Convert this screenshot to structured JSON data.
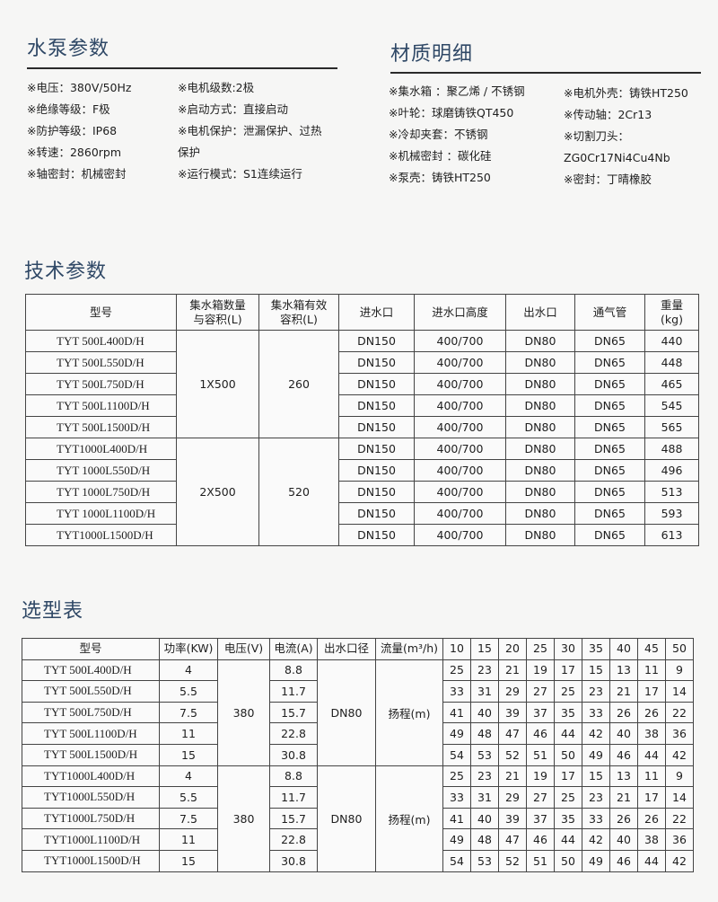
{
  "pump_params": {
    "title": "水泵参数",
    "col1": [
      "※电压：380V/50Hz",
      "※绝缘等级：F极",
      "※防护等级：IP68",
      "※转速：2860rpm",
      "※轴密封：机械密封"
    ],
    "col2": [
      "※电机级数:2极",
      "※启动方式：直接启动",
      "※电机保护：泄漏保护、过热",
      "保护",
      "※运行模式：S1连续运行"
    ]
  },
  "materials": {
    "title": "材质明细",
    "col1": [
      "※集水箱 ：聚乙烯 / 不锈钢",
      "※叶轮：球磨铸铁QT450",
      "※冷却夹套：不锈钢",
      "※机械密封 ：碳化硅",
      "※泵壳：铸铁HT250"
    ],
    "col2": [
      "※电机外壳：铸铁HT250",
      "※传动轴：2Cr13",
      "※切割刀头：",
      "ZG0Cr17Ni4Cu4Nb",
      "※密封：丁晴橡胶"
    ]
  },
  "tech": {
    "title": "技术参数",
    "headers": [
      "型号",
      "集水箱数量与容积(L)",
      "集水箱有效容积(L)",
      "进水口",
      "进水口高度",
      "出水口",
      "通气管",
      "重量(kg)"
    ],
    "groups": [
      {
        "tank": "1X500",
        "effective": "260",
        "rows": [
          [
            "TYT 500L400D/H",
            "DN150",
            "400/700",
            "DN80",
            "DN65",
            "440"
          ],
          [
            "TYT 500L550D/H",
            "DN150",
            "400/700",
            "DN80",
            "DN65",
            "448"
          ],
          [
            "TYT 500L750D/H",
            "DN150",
            "400/700",
            "DN80",
            "DN65",
            "465"
          ],
          [
            "TYT 500L1100D/H",
            "DN150",
            "400/700",
            "DN80",
            "DN65",
            "545"
          ],
          [
            "TYT 500L1500D/H",
            "DN150",
            "400/700",
            "DN80",
            "DN65",
            "565"
          ]
        ]
      },
      {
        "tank": "2X500",
        "effective": "520",
        "rows": [
          [
            "TYT1000L400D/H",
            "DN150",
            "400/700",
            "DN80",
            "DN65",
            "488"
          ],
          [
            "TYT 1000L550D/H",
            "DN150",
            "400/700",
            "DN80",
            "DN65",
            "496"
          ],
          [
            "TYT 1000L750D/H",
            "DN150",
            "400/700",
            "DN80",
            "DN65",
            "513"
          ],
          [
            "TYT 1000L1100D/H",
            "DN150",
            "400/700",
            "DN80",
            "DN65",
            "593"
          ],
          [
            "TYT1000L1500D/H",
            "DN150",
            "400/700",
            "DN80",
            "DN65",
            "613"
          ]
        ]
      }
    ]
  },
  "selection": {
    "title": "选型表",
    "headers": [
      "型号",
      "功率(KW)",
      "电压(V)",
      "电流(A)",
      "出水口径",
      "流量(m³/h)"
    ],
    "flows": [
      "10",
      "15",
      "20",
      "25",
      "30",
      "35",
      "40",
      "45",
      "50"
    ],
    "groups": [
      {
        "voltage": "380",
        "outlet": "DN80",
        "head_label": "扬程(m)",
        "rows": [
          {
            "model": "TYT 500L400D/H",
            "power": "4",
            "current": "8.8",
            "heads": [
              "25",
              "23",
              "21",
              "19",
              "17",
              "15",
              "13",
              "11",
              "9"
            ]
          },
          {
            "model": "TYT 500L550D/H",
            "power": "5.5",
            "current": "11.7",
            "heads": [
              "33",
              "31",
              "29",
              "27",
              "25",
              "23",
              "21",
              "17",
              "14"
            ]
          },
          {
            "model": "TYT 500L750D/H",
            "power": "7.5",
            "current": "15.7",
            "heads": [
              "41",
              "40",
              "39",
              "37",
              "35",
              "33",
              "26",
              "26",
              "22"
            ]
          },
          {
            "model": "TYT 500L1100D/H",
            "power": "11",
            "current": "22.8",
            "heads": [
              "49",
              "48",
              "47",
              "46",
              "44",
              "42",
              "40",
              "38",
              "36"
            ]
          },
          {
            "model": "TYT 500L1500D/H",
            "power": "15",
            "current": "30.8",
            "heads": [
              "54",
              "53",
              "52",
              "51",
              "50",
              "49",
              "46",
              "44",
              "42"
            ]
          }
        ]
      },
      {
        "voltage": "380",
        "outlet": "DN80",
        "head_label": "扬程(m)",
        "rows": [
          {
            "model": "TYT1000L400D/H",
            "power": "4",
            "current": "8.8",
            "heads": [
              "25",
              "23",
              "21",
              "19",
              "17",
              "15",
              "13",
              "11",
              "9"
            ]
          },
          {
            "model": "TYT1000L550D/H",
            "power": "5.5",
            "current": "11.7",
            "heads": [
              "33",
              "31",
              "29",
              "27",
              "25",
              "23",
              "21",
              "17",
              "14"
            ]
          },
          {
            "model": "TYT1000L750D/H",
            "power": "7.5",
            "current": "15.7",
            "heads": [
              "41",
              "40",
              "39",
              "37",
              "35",
              "33",
              "26",
              "26",
              "22"
            ]
          },
          {
            "model": "TYT1000L1100D/H",
            "power": "11",
            "current": "22.8",
            "heads": [
              "49",
              "48",
              "47",
              "46",
              "44",
              "42",
              "40",
              "38",
              "36"
            ]
          },
          {
            "model": "TYT1000L1500D/H",
            "power": "15",
            "current": "30.8",
            "heads": [
              "54",
              "53",
              "52",
              "51",
              "50",
              "49",
              "46",
              "44",
              "42"
            ]
          }
        ]
      }
    ]
  }
}
